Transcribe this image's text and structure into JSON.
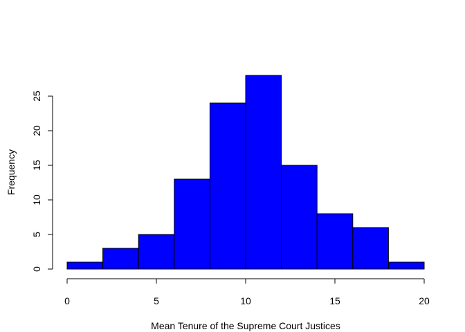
{
  "chart_data": {
    "type": "bar",
    "variant": "histogram",
    "bin_edges": [
      0,
      2,
      4,
      6,
      8,
      10,
      12,
      14,
      16,
      18,
      20
    ],
    "values": [
      1,
      3,
      5,
      13,
      24,
      28,
      15,
      8,
      6,
      1
    ],
    "title": "",
    "xlabel": "Mean Tenure of the Supreme Court Justices",
    "ylabel": "Frequency",
    "xlim": [
      0,
      20
    ],
    "ylim": [
      0,
      28
    ],
    "xticks": [
      0,
      5,
      10,
      15,
      20
    ],
    "yticks": [
      0,
      5,
      10,
      15,
      20,
      25
    ],
    "grid": false,
    "bar_color": "#0000ff",
    "edge_color": "#000000"
  }
}
